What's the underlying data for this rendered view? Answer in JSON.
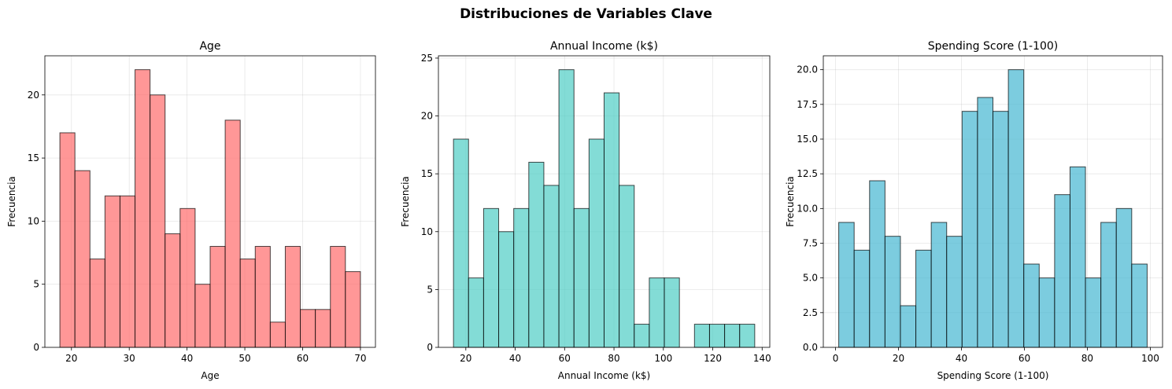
{
  "figure": {
    "title": "Distribuciones de Variables Clave"
  },
  "chart_data": [
    {
      "type": "bar",
      "title": "Age",
      "xlabel": "Age",
      "ylabel": "Frecuencia",
      "color": "#ff6b6b",
      "edge_color": "#000000",
      "grid": true,
      "xlim": [
        15.4,
        72.6
      ],
      "ylim": [
        0,
        23.1
      ],
      "xticks": [
        20,
        30,
        40,
        50,
        60,
        70
      ],
      "yticks": [
        0,
        5,
        10,
        15,
        20
      ],
      "ytick_labels": [
        "0",
        "5",
        "10",
        "15",
        "20"
      ],
      "bin_start": 18,
      "bin_width": 2.6,
      "values": [
        17,
        14,
        7,
        12,
        12,
        22,
        20,
        9,
        11,
        5,
        8,
        18,
        7,
        8,
        2,
        8,
        3,
        3,
        8,
        6
      ]
    },
    {
      "type": "bar",
      "title": "Annual Income (k$)",
      "xlabel": "Annual Income (k$)",
      "ylabel": "Frecuencia",
      "color": "#4ecdc4",
      "edge_color": "#000000",
      "grid": true,
      "xlim": [
        8.9,
        143.1
      ],
      "ylim": [
        0,
        25.2
      ],
      "xticks": [
        20,
        40,
        60,
        80,
        100,
        120,
        140
      ],
      "yticks": [
        0,
        5,
        10,
        15,
        20,
        25
      ],
      "ytick_labels": [
        "0",
        "5",
        "10",
        "15",
        "20",
        "25"
      ],
      "bin_start": 15,
      "bin_width": 6.1,
      "values": [
        18,
        6,
        12,
        10,
        12,
        16,
        14,
        24,
        12,
        18,
        22,
        14,
        2,
        6,
        6,
        0,
        2,
        2,
        2,
        2
      ]
    },
    {
      "type": "bar",
      "title": "Spending Score (1-100)",
      "xlabel": "Spending Score (1-100)",
      "ylabel": "Frecuencia",
      "color": "#45b7d1",
      "edge_color": "#000000",
      "grid": true,
      "xlim": [
        -3.9,
        103.9
      ],
      "ylim": [
        0,
        21
      ],
      "xticks": [
        0,
        20,
        40,
        60,
        80,
        100
      ],
      "yticks": [
        0,
        2.5,
        5,
        7.5,
        10,
        12.5,
        15,
        17.5,
        20
      ],
      "ytick_labels": [
        "0.0",
        "2.5",
        "5.0",
        "7.5",
        "10.0",
        "12.5",
        "15.0",
        "17.5",
        "20.0"
      ],
      "bin_start": 1,
      "bin_width": 4.9,
      "values": [
        9,
        7,
        12,
        8,
        3,
        7,
        9,
        8,
        17,
        18,
        17,
        20,
        6,
        5,
        11,
        13,
        5,
        9,
        10,
        6
      ]
    }
  ]
}
